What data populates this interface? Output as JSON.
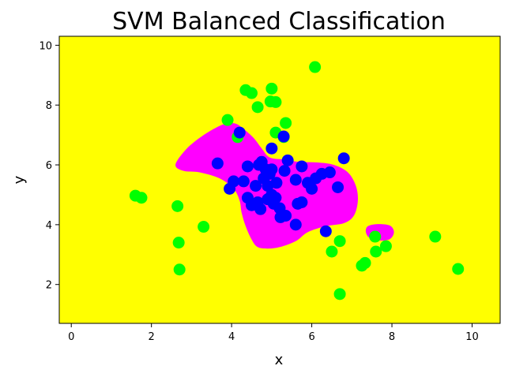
{
  "chart_data": {
    "type": "scatter",
    "title": "SVM Balanced Classification",
    "xlabel": "x",
    "ylabel": "y",
    "xlim": [
      -0.3,
      10.7
    ],
    "ylim": [
      0.7,
      10.3
    ],
    "xticks": [
      0,
      2,
      4,
      6,
      8,
      10
    ],
    "yticks": [
      2,
      4,
      6,
      8,
      10
    ],
    "grid": false,
    "background_region_color": "#ffff00",
    "decision_region_color": "#ff00ff",
    "decision_regions": [
      {
        "name": "main",
        "outline": [
          [
            2.6,
            6.0
          ],
          [
            2.85,
            6.5
          ],
          [
            3.2,
            6.9
          ],
          [
            3.55,
            7.2
          ],
          [
            3.85,
            7.38
          ],
          [
            4.1,
            7.38
          ],
          [
            4.3,
            7.2
          ],
          [
            4.55,
            6.9
          ],
          [
            4.75,
            6.55
          ],
          [
            4.95,
            6.25
          ],
          [
            5.3,
            6.18
          ],
          [
            5.7,
            6.1
          ],
          [
            6.15,
            6.08
          ],
          [
            6.55,
            6.0
          ],
          [
            6.9,
            5.75
          ],
          [
            7.1,
            5.3
          ],
          [
            7.15,
            4.8
          ],
          [
            7.05,
            4.3
          ],
          [
            6.8,
            4.05
          ],
          [
            6.35,
            3.95
          ],
          [
            5.9,
            3.75
          ],
          [
            5.6,
            3.45
          ],
          [
            5.2,
            3.25
          ],
          [
            4.9,
            3.2
          ],
          [
            4.65,
            3.25
          ],
          [
            4.5,
            3.5
          ],
          [
            4.35,
            3.95
          ],
          [
            4.25,
            4.4
          ],
          [
            4.2,
            4.8
          ],
          [
            4.05,
            5.2
          ],
          [
            3.7,
            5.55
          ],
          [
            3.2,
            5.75
          ],
          [
            2.8,
            5.8
          ]
        ]
      },
      {
        "name": "small",
        "outline": [
          [
            7.35,
            3.75
          ],
          [
            7.4,
            3.95
          ],
          [
            7.65,
            4.02
          ],
          [
            7.95,
            3.97
          ],
          [
            8.05,
            3.75
          ],
          [
            7.95,
            3.52
          ],
          [
            7.7,
            3.47
          ],
          [
            7.45,
            3.55
          ]
        ]
      }
    ],
    "series": [
      {
        "color": "#00ff00",
        "points": [
          [
            1.6,
            4.97
          ],
          [
            1.75,
            4.9
          ],
          [
            2.65,
            4.62
          ],
          [
            2.68,
            3.4
          ],
          [
            2.7,
            2.5
          ],
          [
            3.3,
            3.93
          ],
          [
            3.9,
            7.5
          ],
          [
            4.15,
            6.93
          ],
          [
            4.35,
            8.5
          ],
          [
            4.5,
            8.4
          ],
          [
            4.65,
            7.93
          ],
          [
            4.97,
            8.12
          ],
          [
            5.0,
            8.55
          ],
          [
            5.1,
            8.1
          ],
          [
            5.1,
            7.08
          ],
          [
            5.3,
            6.93
          ],
          [
            5.35,
            7.4
          ],
          [
            6.08,
            9.27
          ],
          [
            6.5,
            3.1
          ],
          [
            6.7,
            3.45
          ],
          [
            6.7,
            1.68
          ],
          [
            7.25,
            2.63
          ],
          [
            7.33,
            2.72
          ],
          [
            7.58,
            3.6
          ],
          [
            7.6,
            3.1
          ],
          [
            7.85,
            3.28
          ],
          [
            9.08,
            3.6
          ],
          [
            9.65,
            2.52
          ]
        ]
      },
      {
        "color": "#0000ff",
        "points": [
          [
            3.65,
            6.05
          ],
          [
            3.95,
            5.2
          ],
          [
            4.05,
            5.45
          ],
          [
            4.2,
            7.08
          ],
          [
            4.3,
            5.45
          ],
          [
            4.4,
            5.95
          ],
          [
            4.4,
            4.9
          ],
          [
            4.5,
            4.65
          ],
          [
            4.6,
            5.3
          ],
          [
            4.65,
            4.75
          ],
          [
            4.68,
            6.0
          ],
          [
            4.72,
            4.52
          ],
          [
            4.75,
            6.1
          ],
          [
            4.8,
            5.55
          ],
          [
            4.85,
            5.85
          ],
          [
            4.9,
            4.85
          ],
          [
            4.9,
            5.3
          ],
          [
            4.95,
            5.7
          ],
          [
            5.0,
            6.55
          ],
          [
            5.0,
            5.85
          ],
          [
            5.0,
            5.0
          ],
          [
            5.05,
            4.7
          ],
          [
            5.1,
            4.9
          ],
          [
            5.12,
            5.4
          ],
          [
            5.2,
            4.55
          ],
          [
            5.22,
            4.25
          ],
          [
            5.3,
            6.95
          ],
          [
            5.32,
            5.8
          ],
          [
            5.35,
            4.3
          ],
          [
            5.4,
            6.15
          ],
          [
            5.6,
            4.0
          ],
          [
            5.6,
            5.5
          ],
          [
            5.65,
            4.7
          ],
          [
            5.75,
            4.75
          ],
          [
            5.75,
            5.95
          ],
          [
            5.9,
            5.4
          ],
          [
            6.0,
            5.2
          ],
          [
            6.1,
            5.55
          ],
          [
            6.25,
            5.7
          ],
          [
            6.35,
            3.78
          ],
          [
            6.45,
            5.75
          ],
          [
            6.65,
            5.25
          ],
          [
            6.8,
            6.22
          ]
        ]
      }
    ]
  }
}
